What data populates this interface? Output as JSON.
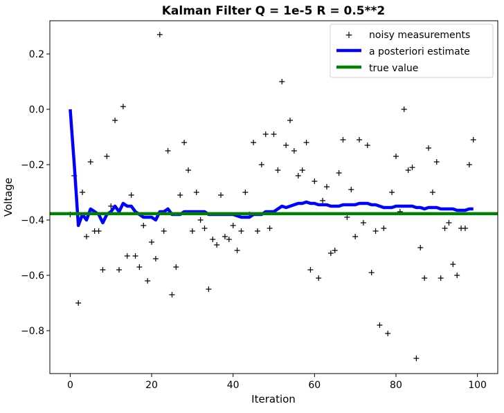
{
  "chart_data": {
    "type": "line",
    "title": "Kalman Filter Q = 1e-5 R = 0.5**2",
    "xlabel": "Iteration",
    "ylabel": "Voltage",
    "xlim": [
      -5,
      105
    ],
    "ylim": [
      -0.955,
      0.32
    ],
    "xticks": [
      0,
      20,
      40,
      60,
      80,
      100
    ],
    "xtick_labels": [
      "0",
      "20",
      "40",
      "60",
      "80",
      "100"
    ],
    "yticks": [
      0.2,
      0.0,
      -0.2,
      -0.4,
      -0.6,
      -0.8
    ],
    "ytick_labels": [
      "0.2",
      "0.0",
      "−0.2",
      "−0.4",
      "−0.6",
      "−0.8"
    ],
    "grid": false,
    "legend_placement": "top-right",
    "series": [
      {
        "name": "noisy measurements",
        "kind": "scatter",
        "marker": "+",
        "color": "#000000",
        "values": [
          -0.38,
          -0.24,
          -0.7,
          -0.3,
          -0.46,
          -0.19,
          -0.44,
          -0.44,
          -0.58,
          -0.17,
          -0.35,
          -0.04,
          -0.58,
          0.01,
          -0.53,
          -0.31,
          -0.53,
          -0.57,
          -0.42,
          -0.62,
          -0.48,
          -0.54,
          0.27,
          -0.44,
          -0.15,
          -0.67,
          -0.57,
          -0.31,
          -0.12,
          -0.22,
          -0.44,
          -0.3,
          -0.4,
          -0.43,
          -0.65,
          -0.47,
          -0.49,
          -0.31,
          -0.46,
          -0.47,
          -0.42,
          -0.51,
          -0.44,
          -0.3,
          -0.38,
          -0.12,
          -0.44,
          -0.2,
          -0.09,
          -0.43,
          -0.09,
          -0.22,
          0.1,
          -0.13,
          -0.04,
          -0.15,
          -0.24,
          -0.22,
          -0.12,
          -0.58,
          -0.26,
          -0.61,
          -0.33,
          -0.28,
          -0.52,
          -0.51,
          -0.23,
          -0.11,
          -0.39,
          -0.29,
          -0.46,
          -0.11,
          -0.41,
          -0.13,
          -0.59,
          -0.44,
          -0.78,
          -0.43,
          -0.81,
          -0.3,
          -0.17,
          -0.37,
          0.0,
          -0.22,
          -0.21,
          -0.9,
          -0.5,
          -0.61,
          -0.14,
          -0.3,
          -0.19,
          -0.61,
          -0.43,
          -0.41,
          -0.56,
          -0.6,
          -0.43,
          -0.43,
          -0.2,
          -0.11
        ]
      },
      {
        "name": "a posteriori estimate",
        "kind": "line",
        "color": "#0000ff",
        "values": [
          0,
          -0.2,
          -0.42,
          -0.38,
          -0.4,
          -0.36,
          -0.37,
          -0.38,
          -0.41,
          -0.38,
          -0.37,
          -0.35,
          -0.37,
          -0.34,
          -0.35,
          -0.35,
          -0.37,
          -0.38,
          -0.39,
          -0.39,
          -0.39,
          -0.4,
          -0.37,
          -0.37,
          -0.36,
          -0.38,
          -0.38,
          -0.38,
          -0.37,
          -0.37,
          -0.37,
          -0.37,
          -0.37,
          -0.37,
          -0.38,
          -0.38,
          -0.38,
          -0.38,
          -0.38,
          -0.38,
          -0.38,
          -0.385,
          -0.39,
          -0.39,
          -0.39,
          -0.38,
          -0.38,
          -0.38,
          -0.37,
          -0.37,
          -0.37,
          -0.36,
          -0.35,
          -0.355,
          -0.35,
          -0.345,
          -0.34,
          -0.34,
          -0.335,
          -0.34,
          -0.34,
          -0.345,
          -0.345,
          -0.345,
          -0.35,
          -0.35,
          -0.35,
          -0.345,
          -0.345,
          -0.345,
          -0.345,
          -0.34,
          -0.34,
          -0.34,
          -0.345,
          -0.345,
          -0.35,
          -0.355,
          -0.355,
          -0.355,
          -0.35,
          -0.35,
          -0.35,
          -0.35,
          -0.35,
          -0.355,
          -0.355,
          -0.36,
          -0.355,
          -0.355,
          -0.355,
          -0.36,
          -0.36,
          -0.36,
          -0.36,
          -0.365,
          -0.365,
          -0.365,
          -0.36,
          -0.36
        ]
      },
      {
        "name": "true value",
        "kind": "hline",
        "color": "#008000",
        "value": -0.37727
      }
    ]
  }
}
